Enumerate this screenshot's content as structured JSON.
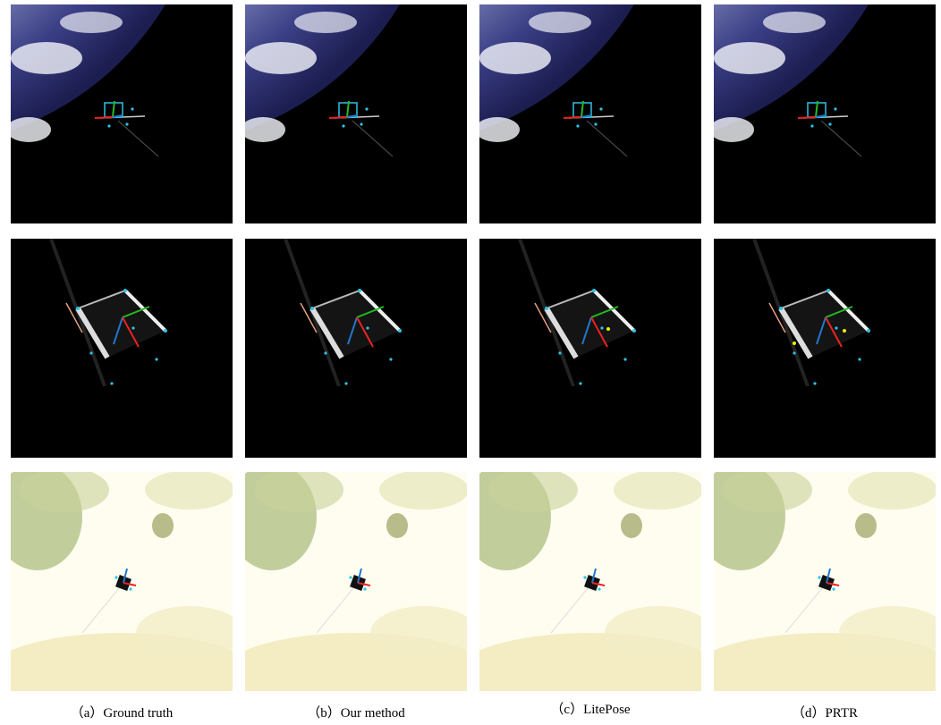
{
  "captions": [
    "（a）Ground truth",
    "（b）Our method",
    "（c）LitePose",
    "（d）PRTR"
  ]
}
